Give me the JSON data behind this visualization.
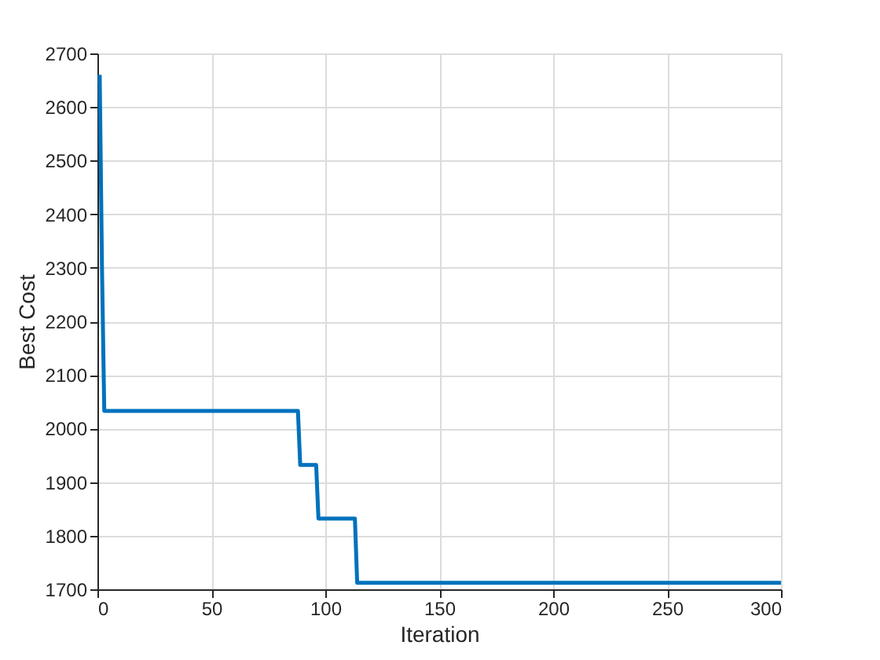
{
  "chart_data": {
    "type": "line",
    "xlabel": "Iteration",
    "ylabel": "Best Cost",
    "x": [
      1,
      2,
      3,
      88,
      89,
      96,
      97,
      113,
      114,
      300
    ],
    "series": [
      {
        "color": "#0072bd",
        "values": [
          2660,
          2300,
          2033,
          2033,
          1932,
          1932,
          1832,
          1832,
          1712,
          1712
        ]
      }
    ],
    "xlim": [
      0,
      300
    ],
    "xticks": [
      0,
      50,
      100,
      150,
      200,
      250,
      300
    ],
    "ylim": [
      1700,
      2700
    ],
    "yticks": [
      1700,
      1800,
      1900,
      2000,
      2100,
      2200,
      2300,
      2400,
      2500,
      2600,
      2700
    ],
    "grid": true,
    "line_style": "solid"
  }
}
